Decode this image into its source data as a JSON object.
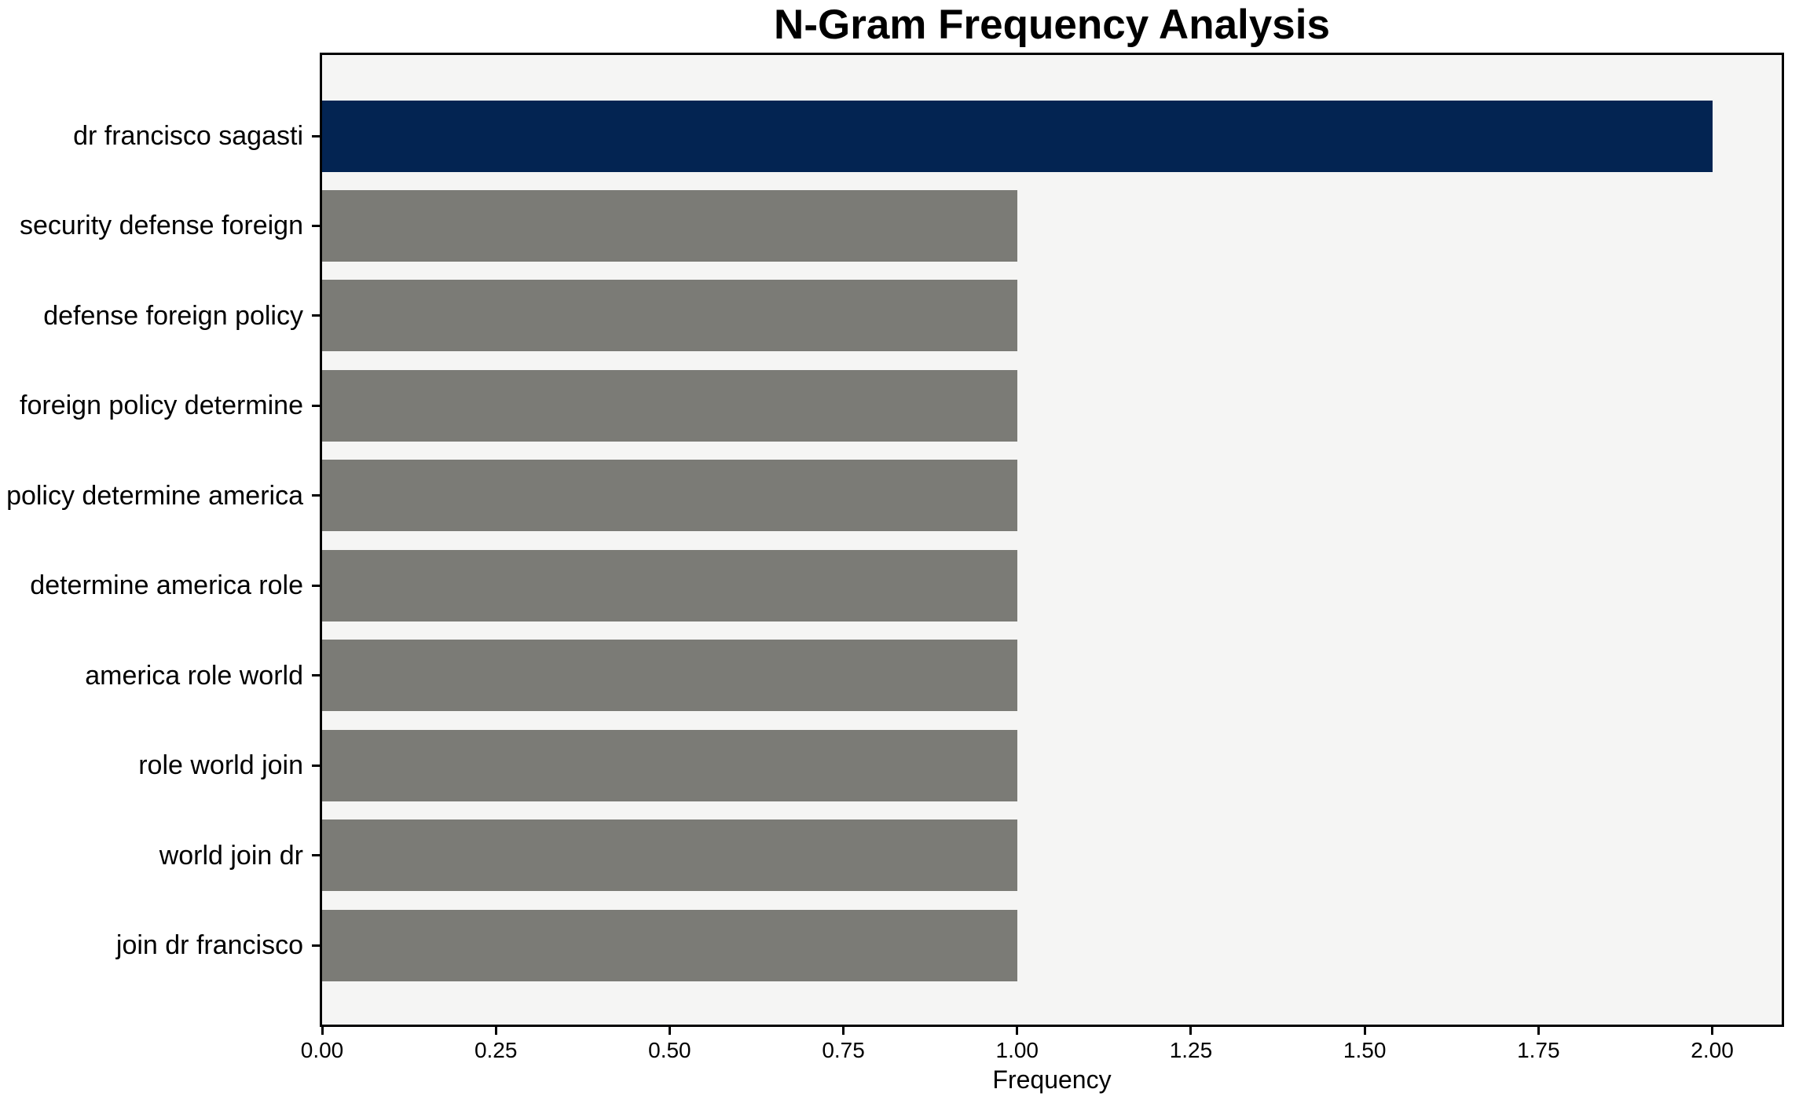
{
  "chart_data": {
    "type": "bar",
    "orientation": "horizontal",
    "title": "N-Gram Frequency Analysis",
    "xlabel": "Frequency",
    "ylabel": "",
    "categories": [
      "dr francisco sagasti",
      "security defense foreign",
      "defense foreign policy",
      "foreign policy determine",
      "policy determine america",
      "determine america role",
      "america role world",
      "role world join",
      "world join dr",
      "join dr francisco"
    ],
    "values": [
      2,
      1,
      1,
      1,
      1,
      1,
      1,
      1,
      1,
      1
    ],
    "xlim": [
      0,
      2.1
    ],
    "xtick_labels": [
      "0.00",
      "0.25",
      "0.50",
      "0.75",
      "1.00",
      "1.25",
      "1.50",
      "1.75",
      "2.00"
    ],
    "xtick_values": [
      0,
      0.25,
      0.5,
      0.75,
      1,
      1.25,
      1.5,
      1.75,
      2
    ],
    "grid": false,
    "legend": false,
    "colors": {
      "highlight_bar": "#032452",
      "default_bar": "#7b7b76",
      "plot_background": "#f5f5f4",
      "figure_background": "#ffffff",
      "spine": "#000000",
      "text": "#000000"
    },
    "highlight_index": 0
  }
}
